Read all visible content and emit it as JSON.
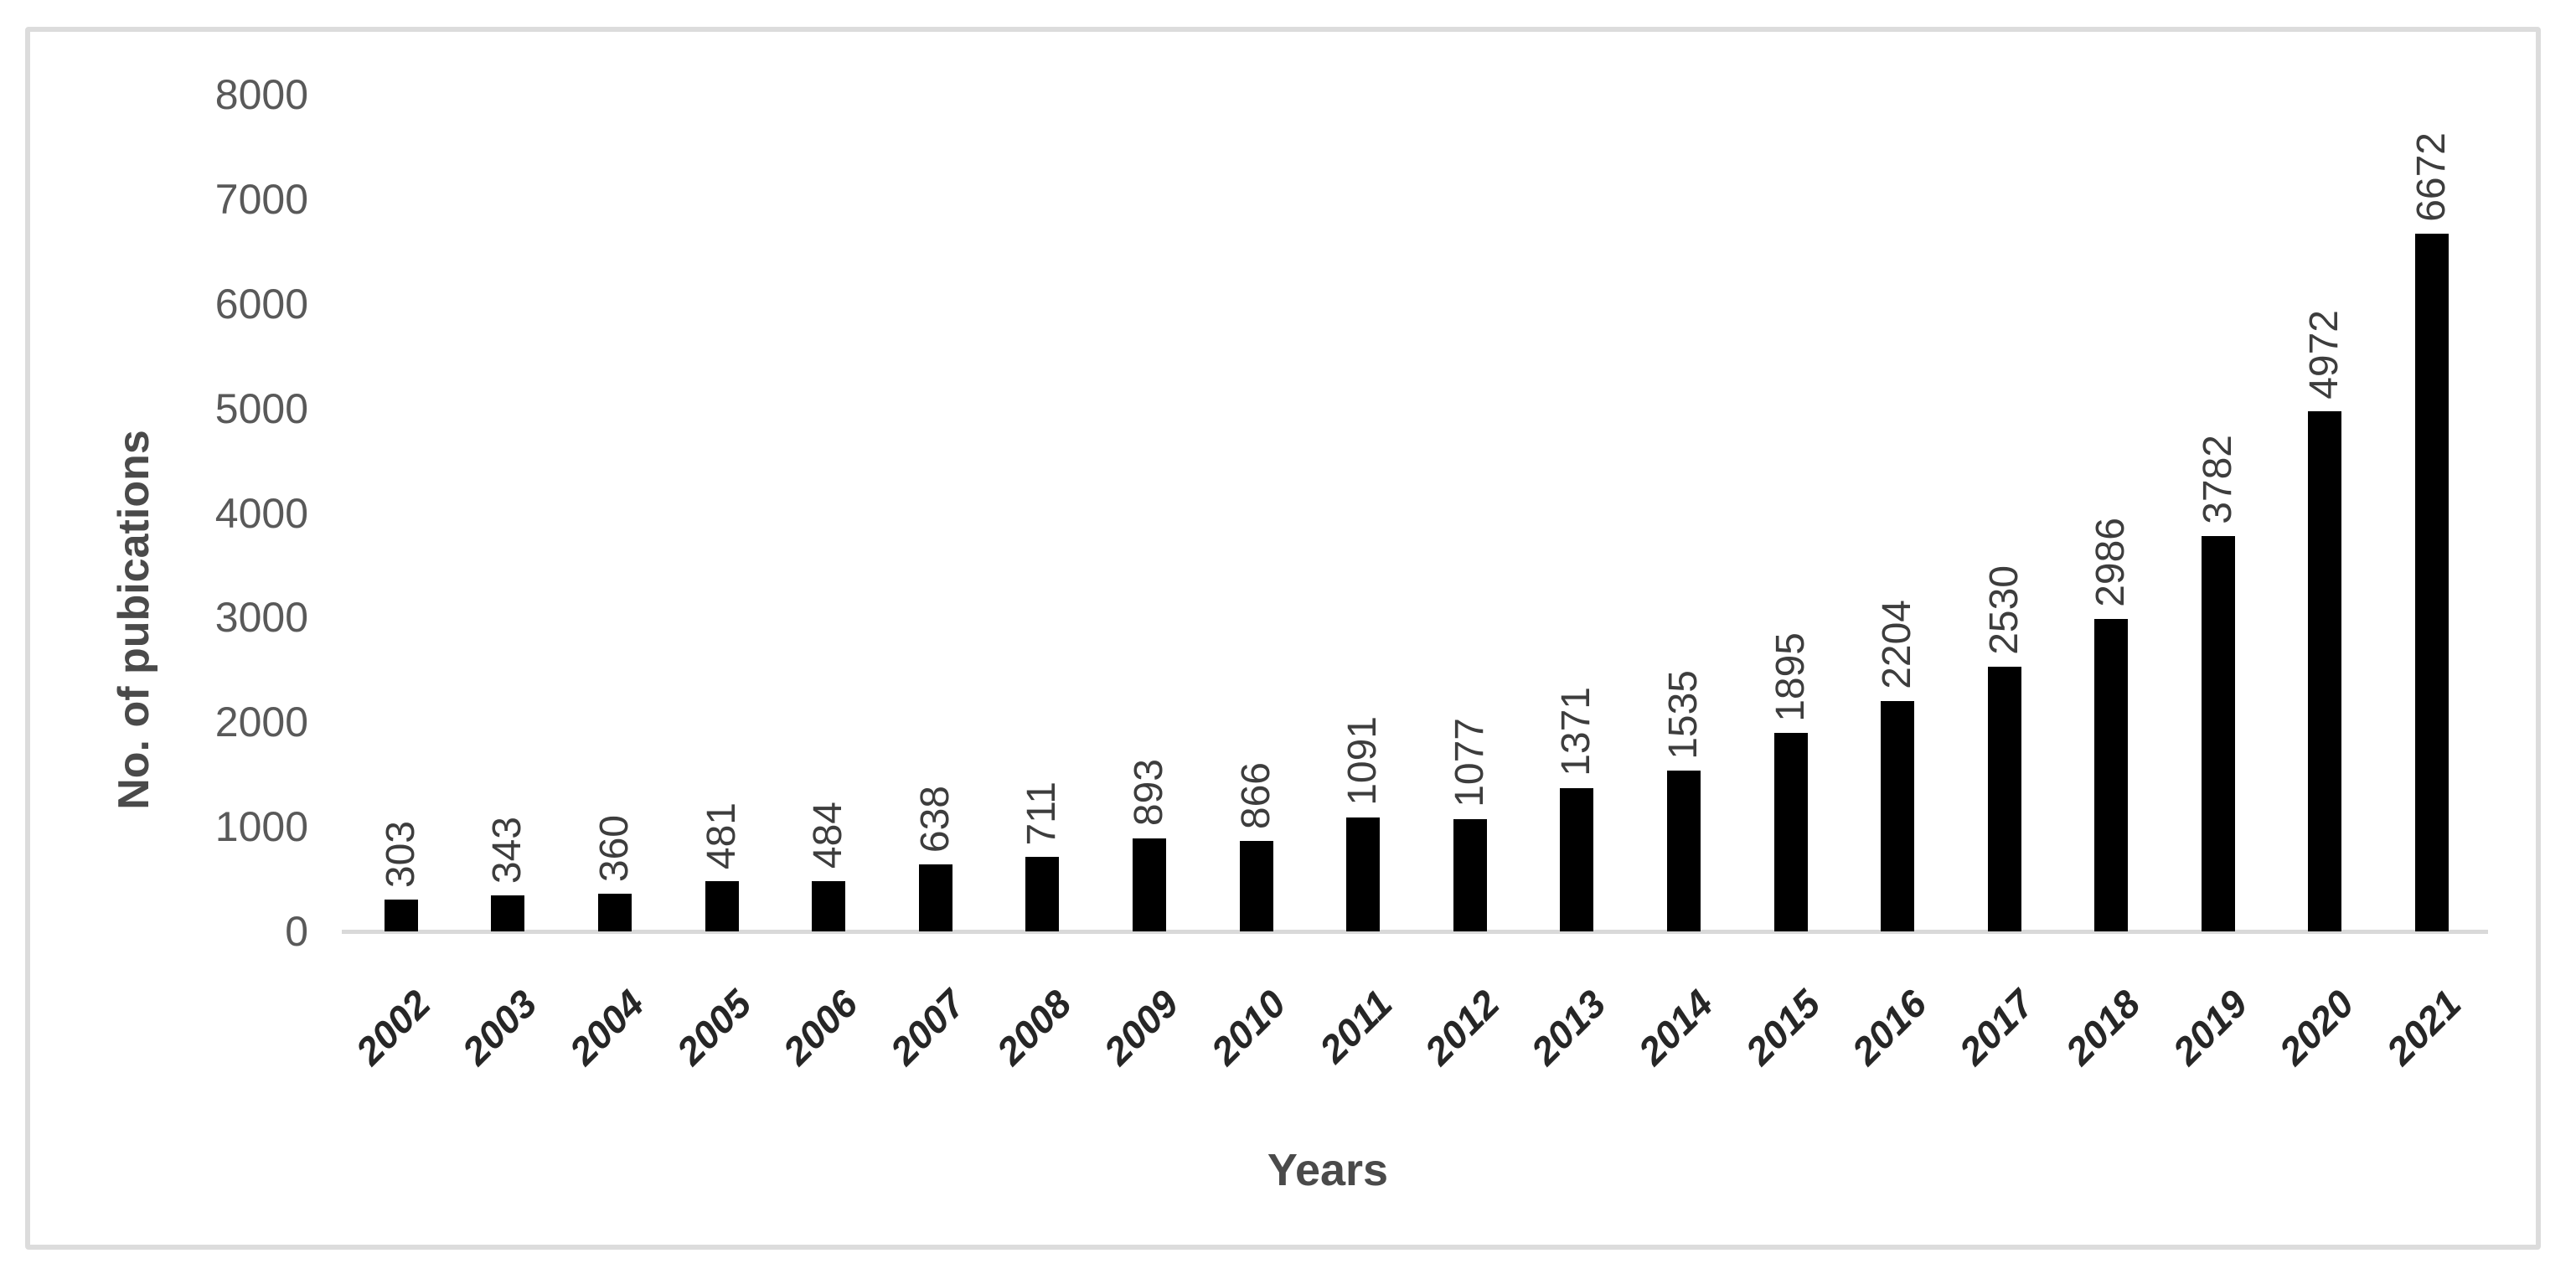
{
  "chart_data": {
    "type": "bar",
    "title": "",
    "xlabel": "Years",
    "ylabel": "No. of pubications",
    "categories": [
      "2002",
      "2003",
      "2004",
      "2005",
      "2006",
      "2007",
      "2008",
      "2009",
      "2010",
      "2011",
      "2012",
      "2013",
      "2014",
      "2015",
      "2016",
      "2017",
      "2018",
      "2019",
      "2020",
      "2021"
    ],
    "values": [
      303,
      343,
      360,
      481,
      484,
      638,
      711,
      893,
      866,
      1091,
      1077,
      1371,
      1535,
      1895,
      2204,
      2530,
      2986,
      3782,
      4972,
      6672
    ],
    "ylim": [
      0,
      8000
    ],
    "yticks": [
      0,
      1000,
      2000,
      3000,
      4000,
      5000,
      6000,
      7000,
      8000
    ],
    "grid": false,
    "legend": false,
    "data_labels_position": "above-bars-rotated-90",
    "category_label_rotation_deg": 45,
    "bar_color": "#000000",
    "axis_line_color": "#d9d9d9",
    "frame_color": "#dcdcdc",
    "tick_label_color": "#595959",
    "data_label_color": "#3d3d3d",
    "category_label_color": "#262626",
    "axis_title_color": "#4a4a4a"
  }
}
